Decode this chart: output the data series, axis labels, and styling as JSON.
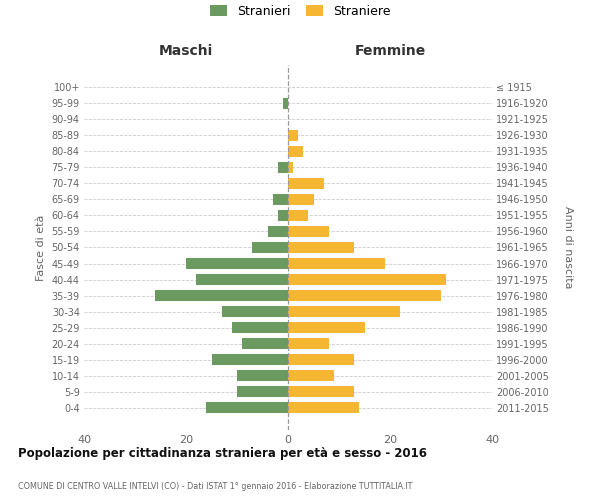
{
  "age_groups": [
    "100+",
    "95-99",
    "90-94",
    "85-89",
    "80-84",
    "75-79",
    "70-74",
    "65-69",
    "60-64",
    "55-59",
    "50-54",
    "45-49",
    "40-44",
    "35-39",
    "30-34",
    "25-29",
    "20-24",
    "15-19",
    "10-14",
    "5-9",
    "0-4"
  ],
  "birth_years": [
    "≤ 1915",
    "1916-1920",
    "1921-1925",
    "1926-1930",
    "1931-1935",
    "1936-1940",
    "1941-1945",
    "1946-1950",
    "1951-1955",
    "1956-1960",
    "1961-1965",
    "1966-1970",
    "1971-1975",
    "1976-1980",
    "1981-1985",
    "1986-1990",
    "1991-1995",
    "1996-2000",
    "2001-2005",
    "2006-2010",
    "2011-2015"
  ],
  "maschi": [
    0,
    1,
    0,
    0,
    0,
    2,
    0,
    3,
    2,
    4,
    7,
    20,
    18,
    26,
    13,
    11,
    9,
    15,
    10,
    10,
    16
  ],
  "femmine": [
    0,
    0,
    0,
    2,
    3,
    1,
    7,
    5,
    4,
    8,
    13,
    19,
    31,
    30,
    22,
    15,
    8,
    13,
    9,
    13,
    14
  ],
  "color_maschi": "#6a9a5f",
  "color_femmine": "#f5b731",
  "title": "Popolazione per cittadinanza straniera per età e sesso - 2016",
  "subtitle": "COMUNE DI CENTRO VALLE INTELVI (CO) - Dati ISTAT 1° gennaio 2016 - Elaborazione TUTTITALIA.IT",
  "label_maschi": "Stranieri",
  "label_femmine": "Straniere",
  "header_left": "Maschi",
  "header_right": "Femmine",
  "ylabel_left": "Fasce di età",
  "ylabel_right": "Anni di nascita",
  "xlim": 40,
  "bg_color": "#ffffff",
  "grid_color": "#cccccc",
  "text_color": "#666666",
  "title_color": "#111111"
}
